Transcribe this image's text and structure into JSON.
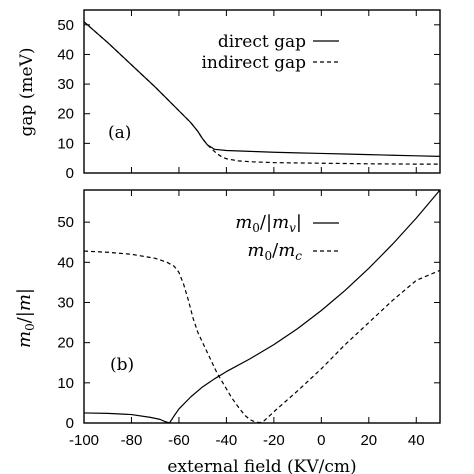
{
  "chart_data": [
    {
      "type": "line",
      "panel_label": "(a)",
      "ylabel": "gap (meV)",
      "xlim": [
        -100,
        50
      ],
      "ylim": [
        0,
        55
      ],
      "x_ticks": [
        -100,
        -80,
        -60,
        -40,
        -20,
        0,
        20,
        40
      ],
      "y_ticks": [
        0,
        10,
        20,
        30,
        40,
        50
      ],
      "x_tick_labels_shown": false,
      "legend_position": "top-right",
      "series": [
        {
          "name": "direct gap",
          "style": "solid",
          "x": [
            -100,
            -90,
            -80,
            -70,
            -60,
            -55,
            -52,
            -50,
            -48,
            -45,
            -40,
            -30,
            -20,
            -10,
            0,
            10,
            20,
            30,
            40,
            50
          ],
          "y": [
            51,
            44,
            36.5,
            29,
            21,
            17,
            14,
            11.5,
            9.5,
            8,
            7.6,
            7.3,
            7,
            6.8,
            6.6,
            6.4,
            6.2,
            6,
            5.8,
            5.6
          ]
        },
        {
          "name": "indirect gap",
          "style": "dashed",
          "x": [
            -100,
            -90,
            -80,
            -70,
            -60,
            -55,
            -52,
            -50,
            -48,
            -46,
            -44,
            -42,
            -40,
            -35,
            -30,
            -20,
            0,
            20,
            40,
            50
          ],
          "y": [
            51,
            44,
            36.5,
            29,
            21,
            17,
            14,
            11.5,
            9.5,
            8,
            6.5,
            5.5,
            4.8,
            4.1,
            3.8,
            3.5,
            3.3,
            3.1,
            3,
            3
          ]
        }
      ]
    },
    {
      "type": "line",
      "panel_label": "(b)",
      "xlabel": "external field (KV/cm)",
      "ylabel": "m0/|m|",
      "xlim": [
        -100,
        50
      ],
      "ylim": [
        0,
        58
      ],
      "x_ticks": [
        -100,
        -80,
        -60,
        -40,
        -20,
        0,
        20,
        40
      ],
      "x_tick_labels": [
        "-100",
        "-80",
        "-60",
        "-40",
        "-20",
        "0",
        "20",
        "40"
      ],
      "y_ticks": [
        0,
        10,
        20,
        30,
        40,
        50
      ],
      "y_tick_labels": [
        "0",
        "10",
        "20",
        "30",
        "40",
        "50"
      ],
      "legend_position": "top-right",
      "series": [
        {
          "name": "m0/|mv|",
          "style": "solid",
          "x": [
            -100,
            -90,
            -80,
            -72,
            -68,
            -66,
            -64,
            -62,
            -60,
            -55,
            -50,
            -45,
            -40,
            -30,
            -20,
            -10,
            0,
            10,
            20,
            30,
            40,
            50
          ],
          "y": [
            2.5,
            2.4,
            2.1,
            1.4,
            0.9,
            0.4,
            0,
            1.8,
            3.5,
            6.5,
            9,
            11,
            12.8,
            16,
            19.5,
            23.5,
            28,
            33,
            38.5,
            44.5,
            51,
            58
          ]
        },
        {
          "name": "m0/mc",
          "style": "dashed",
          "x": [
            -100,
            -90,
            -80,
            -70,
            -65,
            -62,
            -60,
            -58,
            -56,
            -54,
            -52,
            -50,
            -48,
            -46,
            -44,
            -42,
            -40,
            -38,
            -36,
            -34,
            -32,
            -30,
            -28,
            -26,
            -25,
            -24,
            -22,
            -20,
            -10,
            0,
            10,
            20,
            30,
            40,
            50
          ],
          "y": [
            42.8,
            42.5,
            42,
            41,
            40,
            39,
            37.5,
            34.5,
            30.5,
            26,
            22.5,
            20,
            17.5,
            15,
            12.5,
            10.5,
            8.5,
            6.5,
            4.8,
            3.2,
            1.8,
            0.8,
            0.3,
            0.1,
            0.2,
            0.6,
            1.7,
            2.8,
            8,
            13.5,
            19.5,
            25,
            30.5,
            35.5,
            38
          ]
        }
      ]
    }
  ]
}
